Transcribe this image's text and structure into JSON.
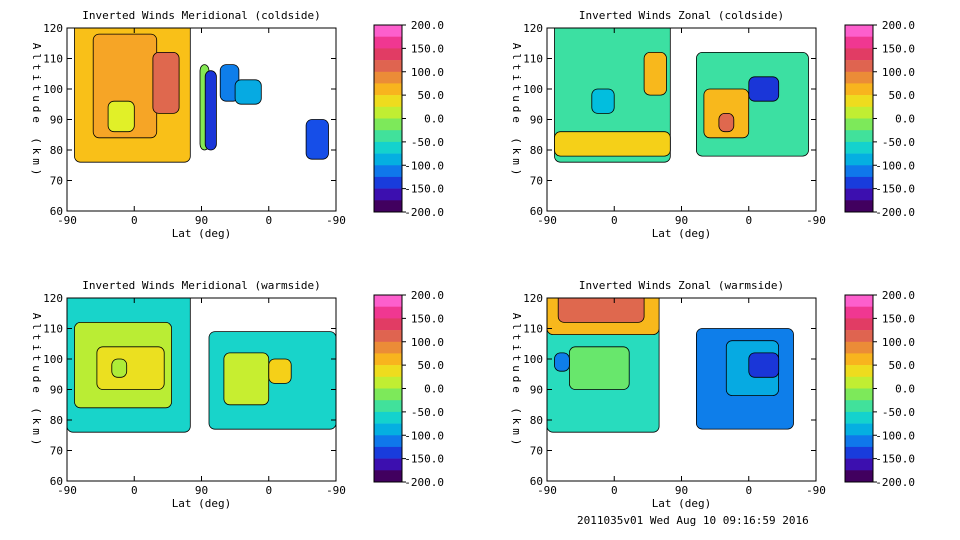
{
  "chart_data": [
    {
      "type": "heatmap",
      "title": "Inverted Winds Meridional (coldside)",
      "xlabel": "Lat (deg)",
      "ylabel": "Altitude (km)",
      "xticks": [
        "-90",
        "0",
        "90",
        "0",
        "-90"
      ],
      "yticks": [
        "60",
        "70",
        "80",
        "90",
        "100",
        "110",
        "120"
      ],
      "ylim": [
        60,
        120
      ],
      "colorbar": {
        "min": -200,
        "max": 200,
        "ticks": [
          "200.0",
          "150.0",
          "100.0",
          "50.0",
          "0.0",
          "-50.0",
          "-100.0",
          "-150.0",
          "-200.0"
        ]
      },
      "cells": [
        {
          "lat": [
            -80,
            75
          ],
          "alt": [
            76,
            122
          ],
          "value": 55
        },
        {
          "lat": [
            -55,
            30
          ],
          "alt": [
            84,
            118
          ],
          "value": 72
        },
        {
          "lat": [
            25,
            60
          ],
          "alt": [
            92,
            112
          ],
          "value": 110
        },
        {
          "lat": [
            -35,
            0
          ],
          "alt": [
            86,
            96
          ],
          "value": 25
        },
        {
          "lat": [
            88,
            100
          ],
          "alt": [
            80,
            108
          ],
          "value": -10
        },
        {
          "lat": [
            115,
            40
          ],
          "alt": [
            96,
            108
          ],
          "value": -110
        },
        {
          "lat": [
            95,
            70
          ],
          "alt": [
            80,
            106
          ],
          "value": -140
        },
        {
          "lat": [
            45,
            10
          ],
          "alt": [
            95,
            103
          ],
          "value": -90
        },
        {
          "lat": [
            -50,
            -80
          ],
          "alt": [
            77,
            90
          ],
          "value": -130
        }
      ]
    },
    {
      "type": "heatmap",
      "title": "Inverted Winds Zonal (coldside)",
      "xlabel": "Lat (deg)",
      "ylabel": "Altitude (km)",
      "xticks": [
        "-90",
        "0",
        "90",
        "0",
        "-90"
      ],
      "yticks": [
        "60",
        "70",
        "80",
        "90",
        "100",
        "110",
        "120"
      ],
      "ylim": [
        60,
        120
      ],
      "colorbar": {
        "min": -200,
        "max": 200,
        "ticks": [
          "200.0",
          "150.0",
          "100.0",
          "50.0",
          "0.0",
          "-50.0",
          "-100.0",
          "-150.0",
          "-200.0"
        ]
      },
      "cells": [
        {
          "lat": [
            -80,
            75
          ],
          "alt": [
            76,
            122
          ],
          "value": -40
        },
        {
          "lat": [
            -80,
            75
          ],
          "alt": [
            78,
            86
          ],
          "value": 45
        },
        {
          "lat": [
            -30,
            0
          ],
          "alt": [
            92,
            100
          ],
          "value": -80
        },
        {
          "lat": [
            40,
            70
          ],
          "alt": [
            98,
            112
          ],
          "value": 60
        },
        {
          "lat": [
            110,
            -80
          ],
          "alt": [
            78,
            112
          ],
          "value": -40
        },
        {
          "lat": [
            60,
            0
          ],
          "alt": [
            84,
            100
          ],
          "value": 60
        },
        {
          "lat": [
            40,
            20
          ],
          "alt": [
            86,
            92
          ],
          "value": 110
        },
        {
          "lat": [
            0,
            -40
          ],
          "alt": [
            96,
            104
          ],
          "value": -140
        }
      ]
    },
    {
      "type": "heatmap",
      "title": "Inverted Winds Meridional (warmside)",
      "xlabel": "Lat (deg)",
      "ylabel": "Altitude (km)",
      "xticks": [
        "-90",
        "0",
        "90",
        "0",
        "-90"
      ],
      "yticks": [
        "60",
        "70",
        "80",
        "90",
        "100",
        "110",
        "120"
      ],
      "ylim": [
        60,
        120
      ],
      "colorbar": {
        "min": -200,
        "max": 200,
        "ticks": [
          "200.0",
          "150.0",
          "100.0",
          "50.0",
          "0.0",
          "-50.0",
          "-100.0",
          "-150.0",
          "-200.0"
        ]
      },
      "cells": [
        {
          "lat": [
            -90,
            75
          ],
          "alt": [
            76,
            122
          ],
          "value": -60
        },
        {
          "lat": [
            -80,
            50
          ],
          "alt": [
            84,
            112
          ],
          "value": 10
        },
        {
          "lat": [
            -50,
            40
          ],
          "alt": [
            90,
            104
          ],
          "value": 35
        },
        {
          "lat": [
            -30,
            -10
          ],
          "alt": [
            94,
            100
          ],
          "value": 5
        },
        {
          "lat": [
            100,
            -90
          ],
          "alt": [
            77,
            109
          ],
          "value": -60
        },
        {
          "lat": [
            60,
            0
          ],
          "alt": [
            85,
            102
          ],
          "value": 15
        },
        {
          "lat": [
            0,
            -30
          ],
          "alt": [
            92,
            100
          ],
          "value": 45
        }
      ]
    },
    {
      "type": "heatmap",
      "title": "Inverted Winds Zonal (warmside)",
      "xlabel": "Lat (deg)",
      "ylabel": "Altitude (km)",
      "xticks": [
        "-90",
        "0",
        "90",
        "0",
        "-90"
      ],
      "yticks": [
        "60",
        "70",
        "80",
        "90",
        "100",
        "110",
        "120"
      ],
      "ylim": [
        60,
        120
      ],
      "colorbar": {
        "min": -200,
        "max": 200,
        "ticks": [
          "200.0",
          "150.0",
          "100.0",
          "50.0",
          "0.0",
          "-50.0",
          "-100.0",
          "-150.0",
          "-200.0"
        ]
      },
      "cells": [
        {
          "lat": [
            -90,
            60
          ],
          "alt": [
            76,
            122
          ],
          "value": -50
        },
        {
          "lat": [
            -90,
            60
          ],
          "alt": [
            108,
            122
          ],
          "value": 60
        },
        {
          "lat": [
            -75,
            40
          ],
          "alt": [
            112,
            122
          ],
          "value": 110
        },
        {
          "lat": [
            -60,
            20
          ],
          "alt": [
            90,
            104
          ],
          "value": -20
        },
        {
          "lat": [
            -80,
            -60
          ],
          "alt": [
            96,
            102
          ],
          "value": -110
        },
        {
          "lat": [
            110,
            -60
          ],
          "alt": [
            77,
            110
          ],
          "value": -110
        },
        {
          "lat": [
            30,
            -40
          ],
          "alt": [
            88,
            106
          ],
          "value": -90
        },
        {
          "lat": [
            0,
            -40
          ],
          "alt": [
            94,
            102
          ],
          "value": -140
        }
      ]
    }
  ],
  "footer": "2011035v01 Wed Aug 10 09:16:59 2016"
}
